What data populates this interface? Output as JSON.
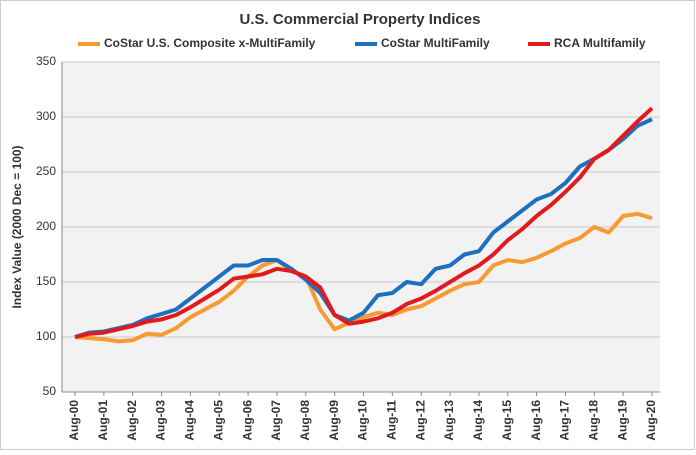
{
  "chart_data": {
    "type": "line",
    "title": "U.S. Commercial Property Indices",
    "y_label": "Index Value (2000 Dec = 100)",
    "categories": [
      "Aug-00",
      null,
      "Aug-01",
      null,
      "Aug-02",
      null,
      "Aug-03",
      null,
      "Aug-04",
      null,
      "Aug-05",
      null,
      "Aug-06",
      null,
      "Aug-07",
      null,
      "Aug-08",
      null,
      "Aug-09",
      null,
      "Aug-10",
      null,
      "Aug-11",
      null,
      "Aug-12",
      null,
      "Aug-13",
      null,
      "Aug-14",
      null,
      "Aug-15",
      null,
      "Aug-16",
      null,
      "Aug-17",
      null,
      "Aug-18",
      null,
      "Aug-19",
      null,
      "Aug-20"
    ],
    "series": [
      {
        "name": "CoStar U.S. Composite x-MultiFamily",
        "color": "#f79a32",
        "values": [
          100,
          99,
          98,
          96,
          97,
          103,
          102,
          108,
          118,
          125,
          132,
          142,
          155,
          165,
          170,
          160,
          155,
          125,
          107,
          113,
          118,
          122,
          120,
          125,
          128,
          135,
          142,
          148,
          150,
          165,
          170,
          168,
          172,
          178,
          185,
          190,
          200,
          195,
          210,
          212,
          208
        ]
      },
      {
        "name": "CoStar MultiFamily",
        "color": "#1f6fc0",
        "values": [
          100,
          104,
          105,
          108,
          111,
          117,
          121,
          125,
          135,
          145,
          155,
          165,
          165,
          170,
          170,
          162,
          152,
          140,
          120,
          115,
          122,
          138,
          140,
          150,
          148,
          162,
          165,
          175,
          178,
          195,
          205,
          215,
          225,
          230,
          240,
          255,
          262,
          270,
          280,
          292,
          298
        ]
      },
      {
        "name": "RCA Multifamily",
        "color": "#e31a1c",
        "values": [
          100,
          103,
          104,
          107,
          110,
          114,
          116,
          120,
          127,
          135,
          143,
          153,
          155,
          157,
          162,
          160,
          155,
          145,
          120,
          112,
          114,
          117,
          122,
          130,
          135,
          142,
          150,
          158,
          165,
          175,
          188,
          198,
          210,
          220,
          232,
          245,
          262,
          270,
          283,
          296,
          308
        ]
      }
    ],
    "ylim": [
      50,
      350
    ],
    "yticks": [
      50,
      100,
      150,
      200,
      250,
      300,
      350
    ],
    "grid": true
  }
}
